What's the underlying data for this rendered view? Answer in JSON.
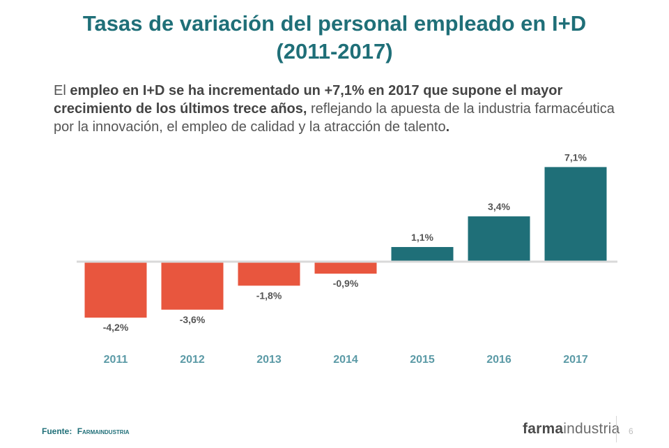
{
  "header": {
    "title_line1": "Tasas de variación del personal empleado en I+D",
    "title_line2": "(2011-2017)"
  },
  "intro": {
    "t1": "El ",
    "b1": "empleo en I+D se ha incrementado un +7,1% en 2017 que supone el mayor crecimiento de los últimos trece años,",
    "t2": " reflejando la apuesta de la industria farmacéutica por la innovación, el empleo de calidad y la atracción de talento",
    "b2": "."
  },
  "chart_data": {
    "type": "bar",
    "categories": [
      "2011",
      "2012",
      "2013",
      "2014",
      "2015",
      "2016",
      "2017"
    ],
    "values": [
      -4.2,
      -3.6,
      -1.8,
      -0.9,
      1.1,
      3.4,
      7.1
    ],
    "data_labels": [
      "-4,2%",
      "-3,6%",
      "-1,8%",
      "-0,9%",
      "1,1%",
      "3,4%",
      "7,1%"
    ],
    "title": "",
    "xlabel": "",
    "ylabel": "",
    "colors": {
      "negative": "#e8563e",
      "positive": "#1f6f78",
      "axis": "#d9d9d9",
      "tick_label": "#5b9aa6",
      "data_label": "#555555"
    },
    "grid": false,
    "legend": "none"
  },
  "footer": {
    "source_label": "Fuente:",
    "source_name": "Farmaindustria",
    "logo_bold": "farma",
    "logo_light": "industria",
    "page_number": "6"
  }
}
